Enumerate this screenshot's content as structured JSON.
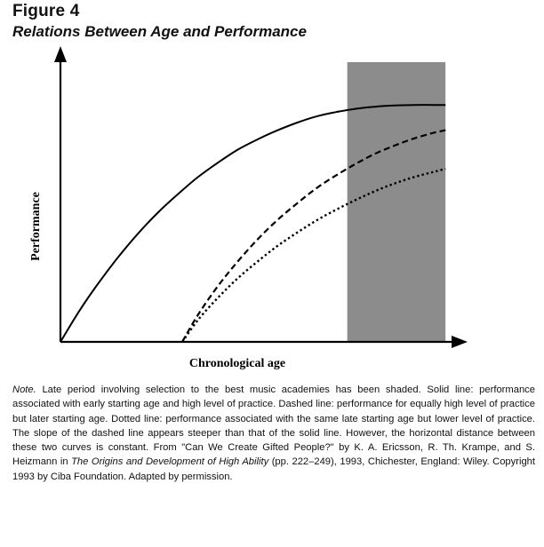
{
  "figure": {
    "label": "Figure 4",
    "title": "Relations Between Age and Performance"
  },
  "chart_data": {
    "type": "line",
    "title": "",
    "xlabel": "Chronological age",
    "ylabel": "Performance",
    "xlim": [
      0,
      10
    ],
    "ylim": [
      0,
      10
    ],
    "grid": false,
    "legend": "none",
    "ticks": "none",
    "shaded_region": {
      "x": [
        7.3,
        9.8
      ],
      "color": "#8c8c8c"
    },
    "series": [
      {
        "style": "solid",
        "x": [
          0,
          0.5,
          1,
          1.5,
          2,
          2.5,
          3,
          3.5,
          4,
          4.5,
          5,
          5.5,
          6,
          6.5,
          7,
          7.5,
          8,
          8.5,
          9,
          9.5,
          9.8
        ],
        "y": [
          0,
          1.25,
          2.35,
          3.35,
          4.25,
          5.05,
          5.75,
          6.4,
          6.95,
          7.45,
          7.85,
          8.2,
          8.5,
          8.75,
          8.92,
          9.05,
          9.13,
          9.18,
          9.2,
          9.2,
          9.2
        ]
      },
      {
        "style": "dashed",
        "x": [
          3.1,
          3.5,
          4,
          4.5,
          5,
          5.5,
          6,
          6.5,
          7,
          7.5,
          8,
          8.5,
          9,
          9.5,
          9.8
        ],
        "y": [
          0,
          1.05,
          2.15,
          3.1,
          3.95,
          4.7,
          5.35,
          5.95,
          6.45,
          6.9,
          7.3,
          7.62,
          7.9,
          8.12,
          8.22
        ]
      },
      {
        "style": "dotted",
        "x": [
          3.1,
          3.5,
          4,
          4.5,
          5,
          5.5,
          6,
          6.5,
          7,
          7.5,
          8,
          8.5,
          9,
          9.5,
          9.8
        ],
        "y": [
          0,
          0.85,
          1.7,
          2.45,
          3.1,
          3.7,
          4.22,
          4.7,
          5.12,
          5.5,
          5.85,
          6.15,
          6.4,
          6.6,
          6.72
        ]
      }
    ]
  },
  "note": {
    "label": "Note.",
    "text1": " Late period involving selection to the best music academies has been shaded. Solid line: performance associated with early starting age and high level of practice. Dashed line: performance for equally high level of practice but later starting age. Dotted line: performance associated with the same late starting age but lower level of practice. The slope of the dashed line appears steeper than that of the solid line. However, the horizontal distance between these two curves is constant. From \"Can We Create Gifted People?\" by K. A. Ericsson, R. Th. Krampe, and S. Heizmann in ",
    "book_title": "The Origins and Development of High Ability",
    "text2": " (pp. 222–249), 1993, Chichester, England: Wiley. Copyright 1993 by Ciba Foundation. Adapted by permission."
  }
}
